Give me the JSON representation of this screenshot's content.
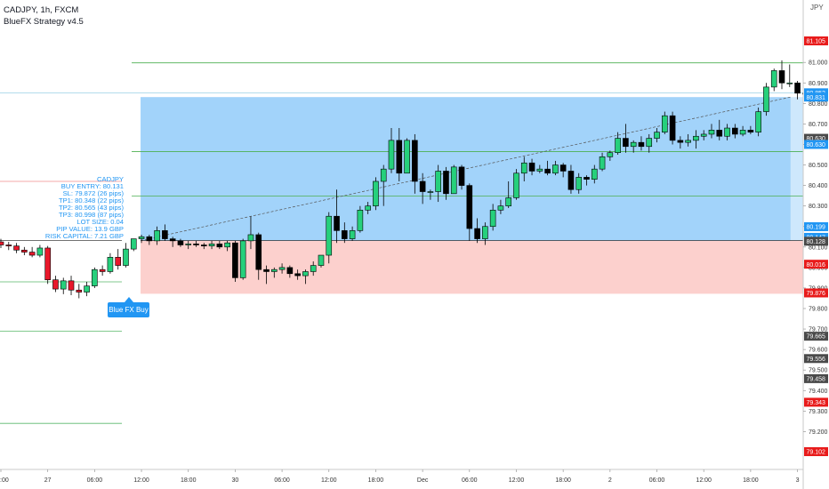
{
  "header": {
    "symbol_line": "CADJPY, 1h, FXCM",
    "indicator": "BlueFX Strategy v4.5"
  },
  "info_panel": [
    "CADJPY",
    "BUY ENTRY: 80.131",
    "SL: 79.872 (26 pips)",
    "TP1: 80.348 (22 pips)",
    "TP2: 80.565 (43 pips)",
    "TP3: 80.998 (87 pips)",
    "LOT SIZE: 0.04",
    "PIP VALUE: 13.9 GBP",
    "RISK CAPITAL: 7.21 GBP"
  ],
  "buy_label": "Blue FX Buy",
  "currency_unit": "JPY",
  "colors": {
    "bull": "#26d07c",
    "bear_black": "#000000",
    "bear_red": "#e8182b",
    "profit_zone": "#2196f3",
    "loss_zone": "#f44336",
    "tp_line": "#4caf50",
    "sl_line": "#f44336",
    "axis_red": "#e81b1b",
    "axis_blue": "#2196f3",
    "axis_grey": "#4a4a4a"
  },
  "chart_data": {
    "type": "candlestick",
    "symbol": "CADJPY",
    "timeframe": "1h",
    "ylim": [
      79.05,
      81.17
    ],
    "y_ticks": [
      "81.000",
      "80.900",
      "80.800",
      "80.700",
      "80.600",
      "80.500",
      "80.400",
      "80.300",
      "80.200",
      "80.100",
      "80.000",
      "79.900",
      "79.800",
      "79.700",
      "79.600",
      "79.500",
      "79.400",
      "79.300",
      "79.200"
    ],
    "x_ticks": [
      {
        "label": "18:00",
        "i": 0
      },
      {
        "label": "27",
        "i": 6
      },
      {
        "label": "06:00",
        "i": 12
      },
      {
        "label": "12:00",
        "i": 18
      },
      {
        "label": "18:00",
        "i": 24
      },
      {
        "label": "30",
        "i": 30
      },
      {
        "label": "06:00",
        "i": 36
      },
      {
        "label": "12:00",
        "i": 42
      },
      {
        "label": "18:00",
        "i": 48
      },
      {
        "label": "Dec",
        "i": 54
      },
      {
        "label": "06:00",
        "i": 60
      },
      {
        "label": "12:00",
        "i": 66
      },
      {
        "label": "18:00",
        "i": 72
      },
      {
        "label": "2",
        "i": 78
      },
      {
        "label": "06:00",
        "i": 84
      },
      {
        "label": "12:00",
        "i": 90
      },
      {
        "label": "18:00",
        "i": 96
      },
      {
        "label": "3",
        "i": 102
      }
    ],
    "candles": [
      {
        "o": 80.125,
        "h": 80.14,
        "l": 80.095,
        "c": 80.11
      },
      {
        "o": 80.11,
        "h": 80.125,
        "l": 80.085,
        "c": 80.105
      },
      {
        "o": 80.105,
        "h": 80.12,
        "l": 80.07,
        "c": 80.085
      },
      {
        "o": 80.085,
        "h": 80.1,
        "l": 80.06,
        "c": 80.075
      },
      {
        "o": 80.075,
        "h": 80.1,
        "l": 80.05,
        "c": 80.06
      },
      {
        "o": 80.06,
        "h": 80.11,
        "l": 80.05,
        "c": 80.095
      },
      {
        "o": 80.095,
        "h": 80.105,
        "l": 79.92,
        "c": 79.94
      },
      {
        "o": 79.94,
        "h": 79.96,
        "l": 79.88,
        "c": 79.895
      },
      {
        "o": 79.895,
        "h": 79.95,
        "l": 79.87,
        "c": 79.935
      },
      {
        "o": 79.935,
        "h": 79.96,
        "l": 79.865,
        "c": 79.89
      },
      {
        "o": 79.89,
        "h": 79.92,
        "l": 79.85,
        "c": 79.88
      },
      {
        "o": 79.88,
        "h": 79.93,
        "l": 79.86,
        "c": 79.91
      },
      {
        "o": 79.91,
        "h": 80.0,
        "l": 79.9,
        "c": 79.99
      },
      {
        "o": 79.99,
        "h": 80.01,
        "l": 79.96,
        "c": 79.98
      },
      {
        "o": 79.98,
        "h": 80.07,
        "l": 79.97,
        "c": 80.05
      },
      {
        "o": 80.05,
        "h": 80.09,
        "l": 79.99,
        "c": 80.01
      },
      {
        "o": 80.01,
        "h": 80.12,
        "l": 80.0,
        "c": 80.09
      },
      {
        "o": 80.09,
        "h": 80.14,
        "l": 80.08,
        "c": 80.14
      },
      {
        "o": 80.14,
        "h": 80.16,
        "l": 80.12,
        "c": 80.15
      },
      {
        "o": 80.15,
        "h": 80.16,
        "l": 80.11,
        "c": 80.13
      },
      {
        "o": 80.13,
        "h": 80.2,
        "l": 80.11,
        "c": 80.18
      },
      {
        "o": 80.18,
        "h": 80.21,
        "l": 80.13,
        "c": 80.14
      },
      {
        "o": 80.14,
        "h": 80.15,
        "l": 80.1,
        "c": 80.13
      },
      {
        "o": 80.13,
        "h": 80.14,
        "l": 80.1,
        "c": 80.11
      },
      {
        "o": 80.11,
        "h": 80.13,
        "l": 80.09,
        "c": 80.115
      },
      {
        "o": 80.115,
        "h": 80.13,
        "l": 80.1,
        "c": 80.11
      },
      {
        "o": 80.11,
        "h": 80.12,
        "l": 80.09,
        "c": 80.105
      },
      {
        "o": 80.105,
        "h": 80.13,
        "l": 80.09,
        "c": 80.115
      },
      {
        "o": 80.115,
        "h": 80.13,
        "l": 80.09,
        "c": 80.1
      },
      {
        "o": 80.1,
        "h": 80.13,
        "l": 80.08,
        "c": 80.12
      },
      {
        "o": 80.12,
        "h": 80.13,
        "l": 79.93,
        "c": 79.95
      },
      {
        "o": 79.95,
        "h": 80.14,
        "l": 79.94,
        "c": 80.13
      },
      {
        "o": 80.13,
        "h": 80.25,
        "l": 80.09,
        "c": 80.16
      },
      {
        "o": 80.16,
        "h": 80.17,
        "l": 79.94,
        "c": 79.99
      },
      {
        "o": 79.99,
        "h": 80.01,
        "l": 79.92,
        "c": 79.98
      },
      {
        "o": 79.98,
        "h": 80.0,
        "l": 79.95,
        "c": 79.99
      },
      {
        "o": 79.99,
        "h": 80.02,
        "l": 79.97,
        "c": 80.0
      },
      {
        "o": 80.0,
        "h": 80.01,
        "l": 79.95,
        "c": 79.97
      },
      {
        "o": 79.97,
        "h": 79.99,
        "l": 79.94,
        "c": 79.96
      },
      {
        "o": 79.96,
        "h": 79.99,
        "l": 79.92,
        "c": 79.98
      },
      {
        "o": 79.98,
        "h": 80.03,
        "l": 79.96,
        "c": 80.01
      },
      {
        "o": 80.01,
        "h": 80.06,
        "l": 80.0,
        "c": 80.06
      },
      {
        "o": 80.06,
        "h": 80.27,
        "l": 80.02,
        "c": 80.25
      },
      {
        "o": 80.25,
        "h": 80.38,
        "l": 80.12,
        "c": 80.18
      },
      {
        "o": 80.18,
        "h": 80.22,
        "l": 80.12,
        "c": 80.14
      },
      {
        "o": 80.14,
        "h": 80.2,
        "l": 80.13,
        "c": 80.18
      },
      {
        "o": 80.18,
        "h": 80.3,
        "l": 80.17,
        "c": 80.28
      },
      {
        "o": 80.28,
        "h": 80.32,
        "l": 80.26,
        "c": 80.3
      },
      {
        "o": 80.3,
        "h": 80.44,
        "l": 80.28,
        "c": 80.42
      },
      {
        "o": 80.42,
        "h": 80.5,
        "l": 80.3,
        "c": 80.48
      },
      {
        "o": 80.48,
        "h": 80.68,
        "l": 80.46,
        "c": 80.62
      },
      {
        "o": 80.62,
        "h": 80.68,
        "l": 80.42,
        "c": 80.46
      },
      {
        "o": 80.46,
        "h": 80.63,
        "l": 80.46,
        "c": 80.62
      },
      {
        "o": 80.62,
        "h": 80.65,
        "l": 80.36,
        "c": 80.42
      },
      {
        "o": 80.42,
        "h": 80.46,
        "l": 80.31,
        "c": 80.37
      },
      {
        "o": 80.37,
        "h": 80.38,
        "l": 80.33,
        "c": 80.37
      },
      {
        "o": 80.37,
        "h": 80.5,
        "l": 80.32,
        "c": 80.47
      },
      {
        "o": 80.47,
        "h": 80.49,
        "l": 80.33,
        "c": 80.36
      },
      {
        "o": 80.36,
        "h": 80.5,
        "l": 80.36,
        "c": 80.49
      },
      {
        "o": 80.49,
        "h": 80.5,
        "l": 80.38,
        "c": 80.4
      },
      {
        "o": 80.4,
        "h": 80.41,
        "l": 80.13,
        "c": 80.19
      },
      {
        "o": 80.19,
        "h": 80.24,
        "l": 80.12,
        "c": 80.14
      },
      {
        "o": 80.14,
        "h": 80.22,
        "l": 80.11,
        "c": 80.2
      },
      {
        "o": 80.2,
        "h": 80.31,
        "l": 80.18,
        "c": 80.28
      },
      {
        "o": 80.28,
        "h": 80.33,
        "l": 80.26,
        "c": 80.3
      },
      {
        "o": 80.3,
        "h": 80.42,
        "l": 80.29,
        "c": 80.34
      },
      {
        "o": 80.34,
        "h": 80.48,
        "l": 80.33,
        "c": 80.46
      },
      {
        "o": 80.46,
        "h": 80.54,
        "l": 80.42,
        "c": 80.51
      },
      {
        "o": 80.51,
        "h": 80.53,
        "l": 80.45,
        "c": 80.47
      },
      {
        "o": 80.47,
        "h": 80.5,
        "l": 80.46,
        "c": 80.48
      },
      {
        "o": 80.48,
        "h": 80.52,
        "l": 80.45,
        "c": 80.46
      },
      {
        "o": 80.46,
        "h": 80.52,
        "l": 80.45,
        "c": 80.5
      },
      {
        "o": 80.5,
        "h": 80.51,
        "l": 80.44,
        "c": 80.47
      },
      {
        "o": 80.47,
        "h": 80.5,
        "l": 80.36,
        "c": 80.38
      },
      {
        "o": 80.38,
        "h": 80.46,
        "l": 80.36,
        "c": 80.44
      },
      {
        "o": 80.44,
        "h": 80.45,
        "l": 80.4,
        "c": 80.43
      },
      {
        "o": 80.43,
        "h": 80.5,
        "l": 80.41,
        "c": 80.48
      },
      {
        "o": 80.48,
        "h": 80.56,
        "l": 80.47,
        "c": 80.54
      },
      {
        "o": 80.54,
        "h": 80.57,
        "l": 80.52,
        "c": 80.56
      },
      {
        "o": 80.56,
        "h": 80.66,
        "l": 80.55,
        "c": 80.63
      },
      {
        "o": 80.63,
        "h": 80.7,
        "l": 80.56,
        "c": 80.59
      },
      {
        "o": 80.59,
        "h": 80.62,
        "l": 80.56,
        "c": 80.61
      },
      {
        "o": 80.61,
        "h": 80.64,
        "l": 80.57,
        "c": 80.59
      },
      {
        "o": 80.59,
        "h": 80.65,
        "l": 80.56,
        "c": 80.63
      },
      {
        "o": 80.63,
        "h": 80.68,
        "l": 80.61,
        "c": 80.66
      },
      {
        "o": 80.66,
        "h": 80.76,
        "l": 80.65,
        "c": 80.74
      },
      {
        "o": 80.74,
        "h": 80.76,
        "l": 80.6,
        "c": 80.62
      },
      {
        "o": 80.62,
        "h": 80.64,
        "l": 80.58,
        "c": 80.61
      },
      {
        "o": 80.61,
        "h": 80.65,
        "l": 80.59,
        "c": 80.62
      },
      {
        "o": 80.62,
        "h": 80.67,
        "l": 80.58,
        "c": 80.64
      },
      {
        "o": 80.64,
        "h": 80.67,
        "l": 80.62,
        "c": 80.65
      },
      {
        "o": 80.65,
        "h": 80.7,
        "l": 80.63,
        "c": 80.67
      },
      {
        "o": 80.67,
        "h": 80.72,
        "l": 80.62,
        "c": 80.64
      },
      {
        "o": 80.64,
        "h": 80.7,
        "l": 80.62,
        "c": 80.68
      },
      {
        "o": 80.68,
        "h": 80.7,
        "l": 80.63,
        "c": 80.65
      },
      {
        "o": 80.65,
        "h": 80.69,
        "l": 80.64,
        "c": 80.67
      },
      {
        "o": 80.67,
        "h": 80.69,
        "l": 80.65,
        "c": 80.66
      },
      {
        "o": 80.66,
        "h": 80.78,
        "l": 80.64,
        "c": 80.76
      },
      {
        "o": 80.76,
        "h": 80.9,
        "l": 80.74,
        "c": 80.88
      },
      {
        "o": 80.88,
        "h": 80.97,
        "l": 80.86,
        "c": 80.96
      },
      {
        "o": 80.96,
        "h": 81.01,
        "l": 80.87,
        "c": 80.9
      },
      {
        "o": 80.9,
        "h": 80.99,
        "l": 80.88,
        "c": 80.9
      },
      {
        "o": 80.9,
        "h": 80.91,
        "l": 80.82,
        "c": 80.85
      },
      {
        "o": 80.85,
        "h": 80.86,
        "l": 80.83,
        "c": 80.845
      }
    ],
    "trade": {
      "entry": 80.131,
      "stop_loss": 79.872,
      "tp1": 80.348,
      "tp2": 80.565,
      "tp3": 80.998,
      "profit_zone_top": 80.831,
      "entry_candle": 18,
      "end_candle": 106
    },
    "left_levels": [
      {
        "price": 80.42,
        "color": "red"
      },
      {
        "price": 80.131,
        "color": "grey"
      },
      {
        "price": 79.93,
        "color": "green"
      },
      {
        "price": 79.69,
        "color": "green"
      },
      {
        "price": 79.24,
        "color": "green"
      }
    ],
    "axis_labels": [
      {
        "text": "81.105",
        "price": 81.105,
        "color": "red"
      },
      {
        "text": "80.852",
        "price": 80.852,
        "color": "blue"
      },
      {
        "text": "80.831",
        "price": 80.831,
        "color": "blue"
      },
      {
        "text": "80.630",
        "price": 80.63,
        "color": "grey"
      },
      {
        "text": "80.630",
        "price": 80.6,
        "color": "blue"
      },
      {
        "text": "80.199",
        "price": 80.199,
        "color": "blue"
      },
      {
        "text": "80.147",
        "price": 80.147,
        "color": "blue"
      },
      {
        "text": "80.128",
        "price": 80.128,
        "color": "grey"
      },
      {
        "text": "80.016",
        "price": 80.016,
        "color": "red"
      },
      {
        "text": "79.876",
        "price": 79.876,
        "color": "red"
      },
      {
        "text": "79.665",
        "price": 79.665,
        "color": "grey"
      },
      {
        "text": "79.556",
        "price": 79.556,
        "color": "grey"
      },
      {
        "text": "79.458",
        "price": 79.458,
        "color": "grey"
      },
      {
        "text": "79.343",
        "price": 79.343,
        "color": "red"
      },
      {
        "text": "79.102",
        "price": 79.102,
        "color": "red"
      }
    ]
  }
}
